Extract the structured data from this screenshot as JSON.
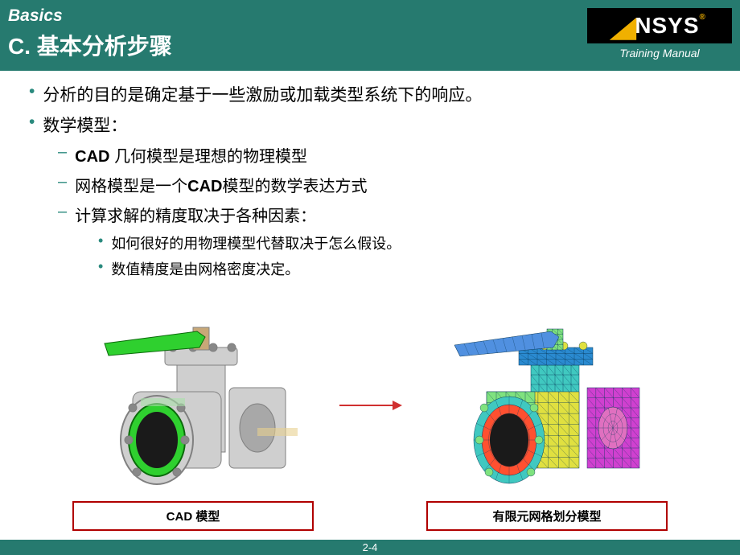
{
  "header": {
    "subtitle": "Basics",
    "title": "C. 基本分析步骤",
    "logo_text": "NSYS",
    "training_manual": "Training Manual",
    "bg_color": "#267a6f"
  },
  "content": {
    "bullets_l1": [
      "分析的目的是确定基于一些激励或加载类型系统下的响应。",
      "数学模型："
    ],
    "bullets_l2": [
      {
        "prefix_bold": "CAD",
        "text": " 几何模型是理想的物理模型"
      },
      {
        "prefix_bold": "",
        "text_parts": [
          "网格模型是一个",
          "CAD",
          "模型的数学表达方式"
        ]
      },
      {
        "prefix_bold": "",
        "text": "计算求解的精度取决于各种因素："
      }
    ],
    "bullets_l3": [
      "如何很好的用物理模型代替取决于怎么假设。",
      "数值精度是由网格密度决定。"
    ],
    "accent_color": "#2a8a7e",
    "text_color": "#000000"
  },
  "models": {
    "cad": {
      "caption": "CAD 模型",
      "colors": {
        "body": "#a8a8a8",
        "body_light": "#cfcfcf",
        "body_dark": "#808080",
        "flange_ring": "#2fd02f",
        "handle": "#2fd02f",
        "bolt": "#888888"
      }
    },
    "mesh": {
      "caption": "有限元网格划分模型",
      "colors": {
        "top": "#2a8ad0",
        "body1": "#7fe27f",
        "body2": "#40c8c0",
        "body3": "#e0e040",
        "body4": "#e070c0",
        "flange_front": "#ff5030",
        "flange_side": "#d040d0",
        "handle": "#5090e0",
        "mesh_line": "#0a3a5a"
      }
    },
    "arrow_color": "#d03030",
    "caption_border": "#b00000"
  },
  "footer": {
    "page": "2-4"
  }
}
